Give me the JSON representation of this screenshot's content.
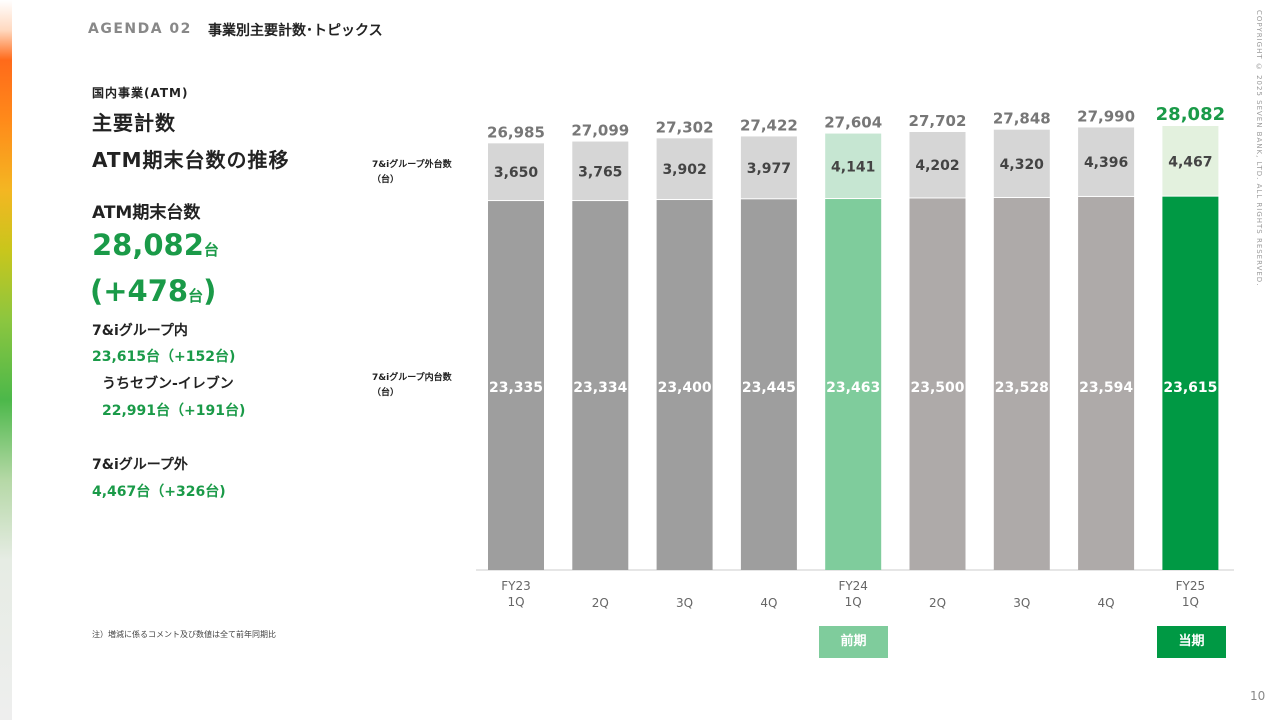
{
  "header": {
    "agenda": "AGENDA 02",
    "title": "事業別主要計数･トピックス",
    "copyright": "COPYRIGHT © 2025 SEVEN BANK, LTD. ALL RIGHTS RESERVED.",
    "page_number": "10"
  },
  "left": {
    "section_label": "国内事業(ATM)",
    "title_line1": "主要計数",
    "title_line2": "ATM期末台数の推移",
    "kpi_label": "ATM期末台数",
    "kpi_value": "28,082",
    "kpi_unit": "台",
    "kpi_diff_open": "(+478",
    "kpi_diff_unit": "台",
    "kpi_diff_close": ")",
    "group_in_label": "7&iグループ内",
    "group_in_value": "23,615台（+152台)",
    "seven_eleven_label": "うちセブン-イレブン",
    "seven_eleven_value": "22,991台（+191台)",
    "group_out_label": "7&iグループ外",
    "group_out_value": "4,467台（+326台)"
  },
  "note": "注）増減に係るコメント及び数値は全て前年同期比",
  "period_badges": {
    "previous": "前期",
    "current": "当期"
  },
  "colors": {
    "accent_green": "#1a9a48",
    "current_inner": "#009944",
    "current_outer": "#e3f1de",
    "previous_inner": "#7fcc9c",
    "previous_outer": "#c6e6d2",
    "gray_inner_old": "#9e9e9e",
    "gray_inner_new": "#aeaaa9",
    "gray_outer": "#d6d6d6"
  },
  "chart_data": {
    "type": "bar",
    "stacked": true,
    "categories": [
      "FY23\n1Q",
      "2Q",
      "3Q",
      "4Q",
      "FY24\n1Q",
      "2Q",
      "3Q",
      "4Q",
      "FY25\n1Q"
    ],
    "series": [
      {
        "name": "7&iグループ内台数\n（台）",
        "values": [
          23335,
          23334,
          23400,
          23445,
          23463,
          23500,
          23528,
          23594,
          23615
        ]
      },
      {
        "name": "7&iグループ外台数\n（台）",
        "values": [
          3650,
          3765,
          3902,
          3977,
          4141,
          4202,
          4320,
          4396,
          4467
        ]
      }
    ],
    "totals": [
      26985,
      27099,
      27302,
      27422,
      27604,
      27702,
      27848,
      27990,
      28082
    ],
    "highlight": {
      "previous_index": 4,
      "current_index": 8
    },
    "ylim": [
      0,
      28082
    ],
    "grid": false,
    "legend": "left"
  }
}
